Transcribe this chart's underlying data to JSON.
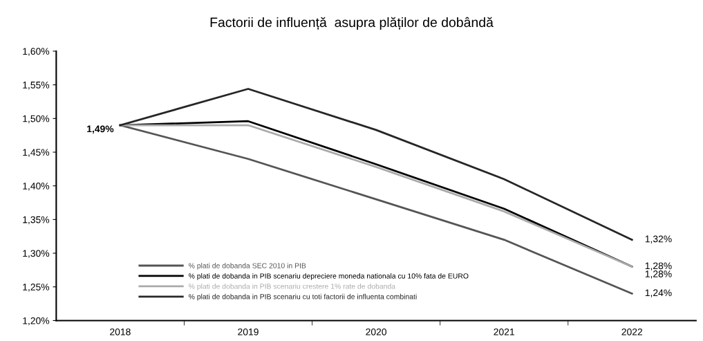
{
  "chart_data": {
    "type": "line",
    "title": "Factorii de influență  asupra plăților de dobândă",
    "categories": [
      "2018",
      "2019",
      "2020",
      "2021",
      "2022"
    ],
    "series": [
      {
        "name": "% plati de dobanda SEC 2010 in PIB",
        "color": "#555555",
        "values": [
          1.49,
          1.44,
          1.38,
          1.32,
          1.24
        ],
        "value_labels": [
          "1,49%",
          null,
          null,
          null,
          "1,24%"
        ]
      },
      {
        "name": "% plati de dobanda in PIB scenariu depreciere moneda nationala cu 10% fata de EURO",
        "color": "#000000",
        "values": [
          1.49,
          1.496,
          1.432,
          1.366,
          1.28
        ],
        "value_labels": [
          null,
          null,
          null,
          null,
          "1,28%"
        ]
      },
      {
        "name": "% plati de dobanda in PIB scenariu crestere 1% rate de dobanda",
        "color": "#aaaaaa",
        "values": [
          1.49,
          1.49,
          1.428,
          1.362,
          1.28
        ],
        "value_labels": [
          null,
          null,
          null,
          null,
          "1,28%"
        ]
      },
      {
        "name": "% plati de dobanda in PIB scenariu cu toti factorii de influenta combinati",
        "color": "#262626",
        "values": [
          1.49,
          1.544,
          1.483,
          1.41,
          1.32
        ],
        "value_labels": [
          null,
          null,
          null,
          null,
          "1,32%"
        ]
      }
    ],
    "ylim": [
      1.2,
      1.6
    ],
    "yticks": [
      {
        "value": 1.2,
        "label": "1,20%"
      },
      {
        "value": 1.25,
        "label": "1,25%"
      },
      {
        "value": 1.3,
        "label": "1,30%"
      },
      {
        "value": 1.35,
        "label": "1,35%"
      },
      {
        "value": 1.4,
        "label": "1,40%"
      },
      {
        "value": 1.45,
        "label": "1,45%"
      },
      {
        "value": 1.5,
        "label": "1,50%"
      },
      {
        "value": 1.55,
        "label": "1,55%"
      },
      {
        "value": 1.6,
        "label": "1,60%"
      }
    ],
    "grid": false,
    "legend": "bottom left",
    "marker": "none",
    "line_style": "solid"
  }
}
